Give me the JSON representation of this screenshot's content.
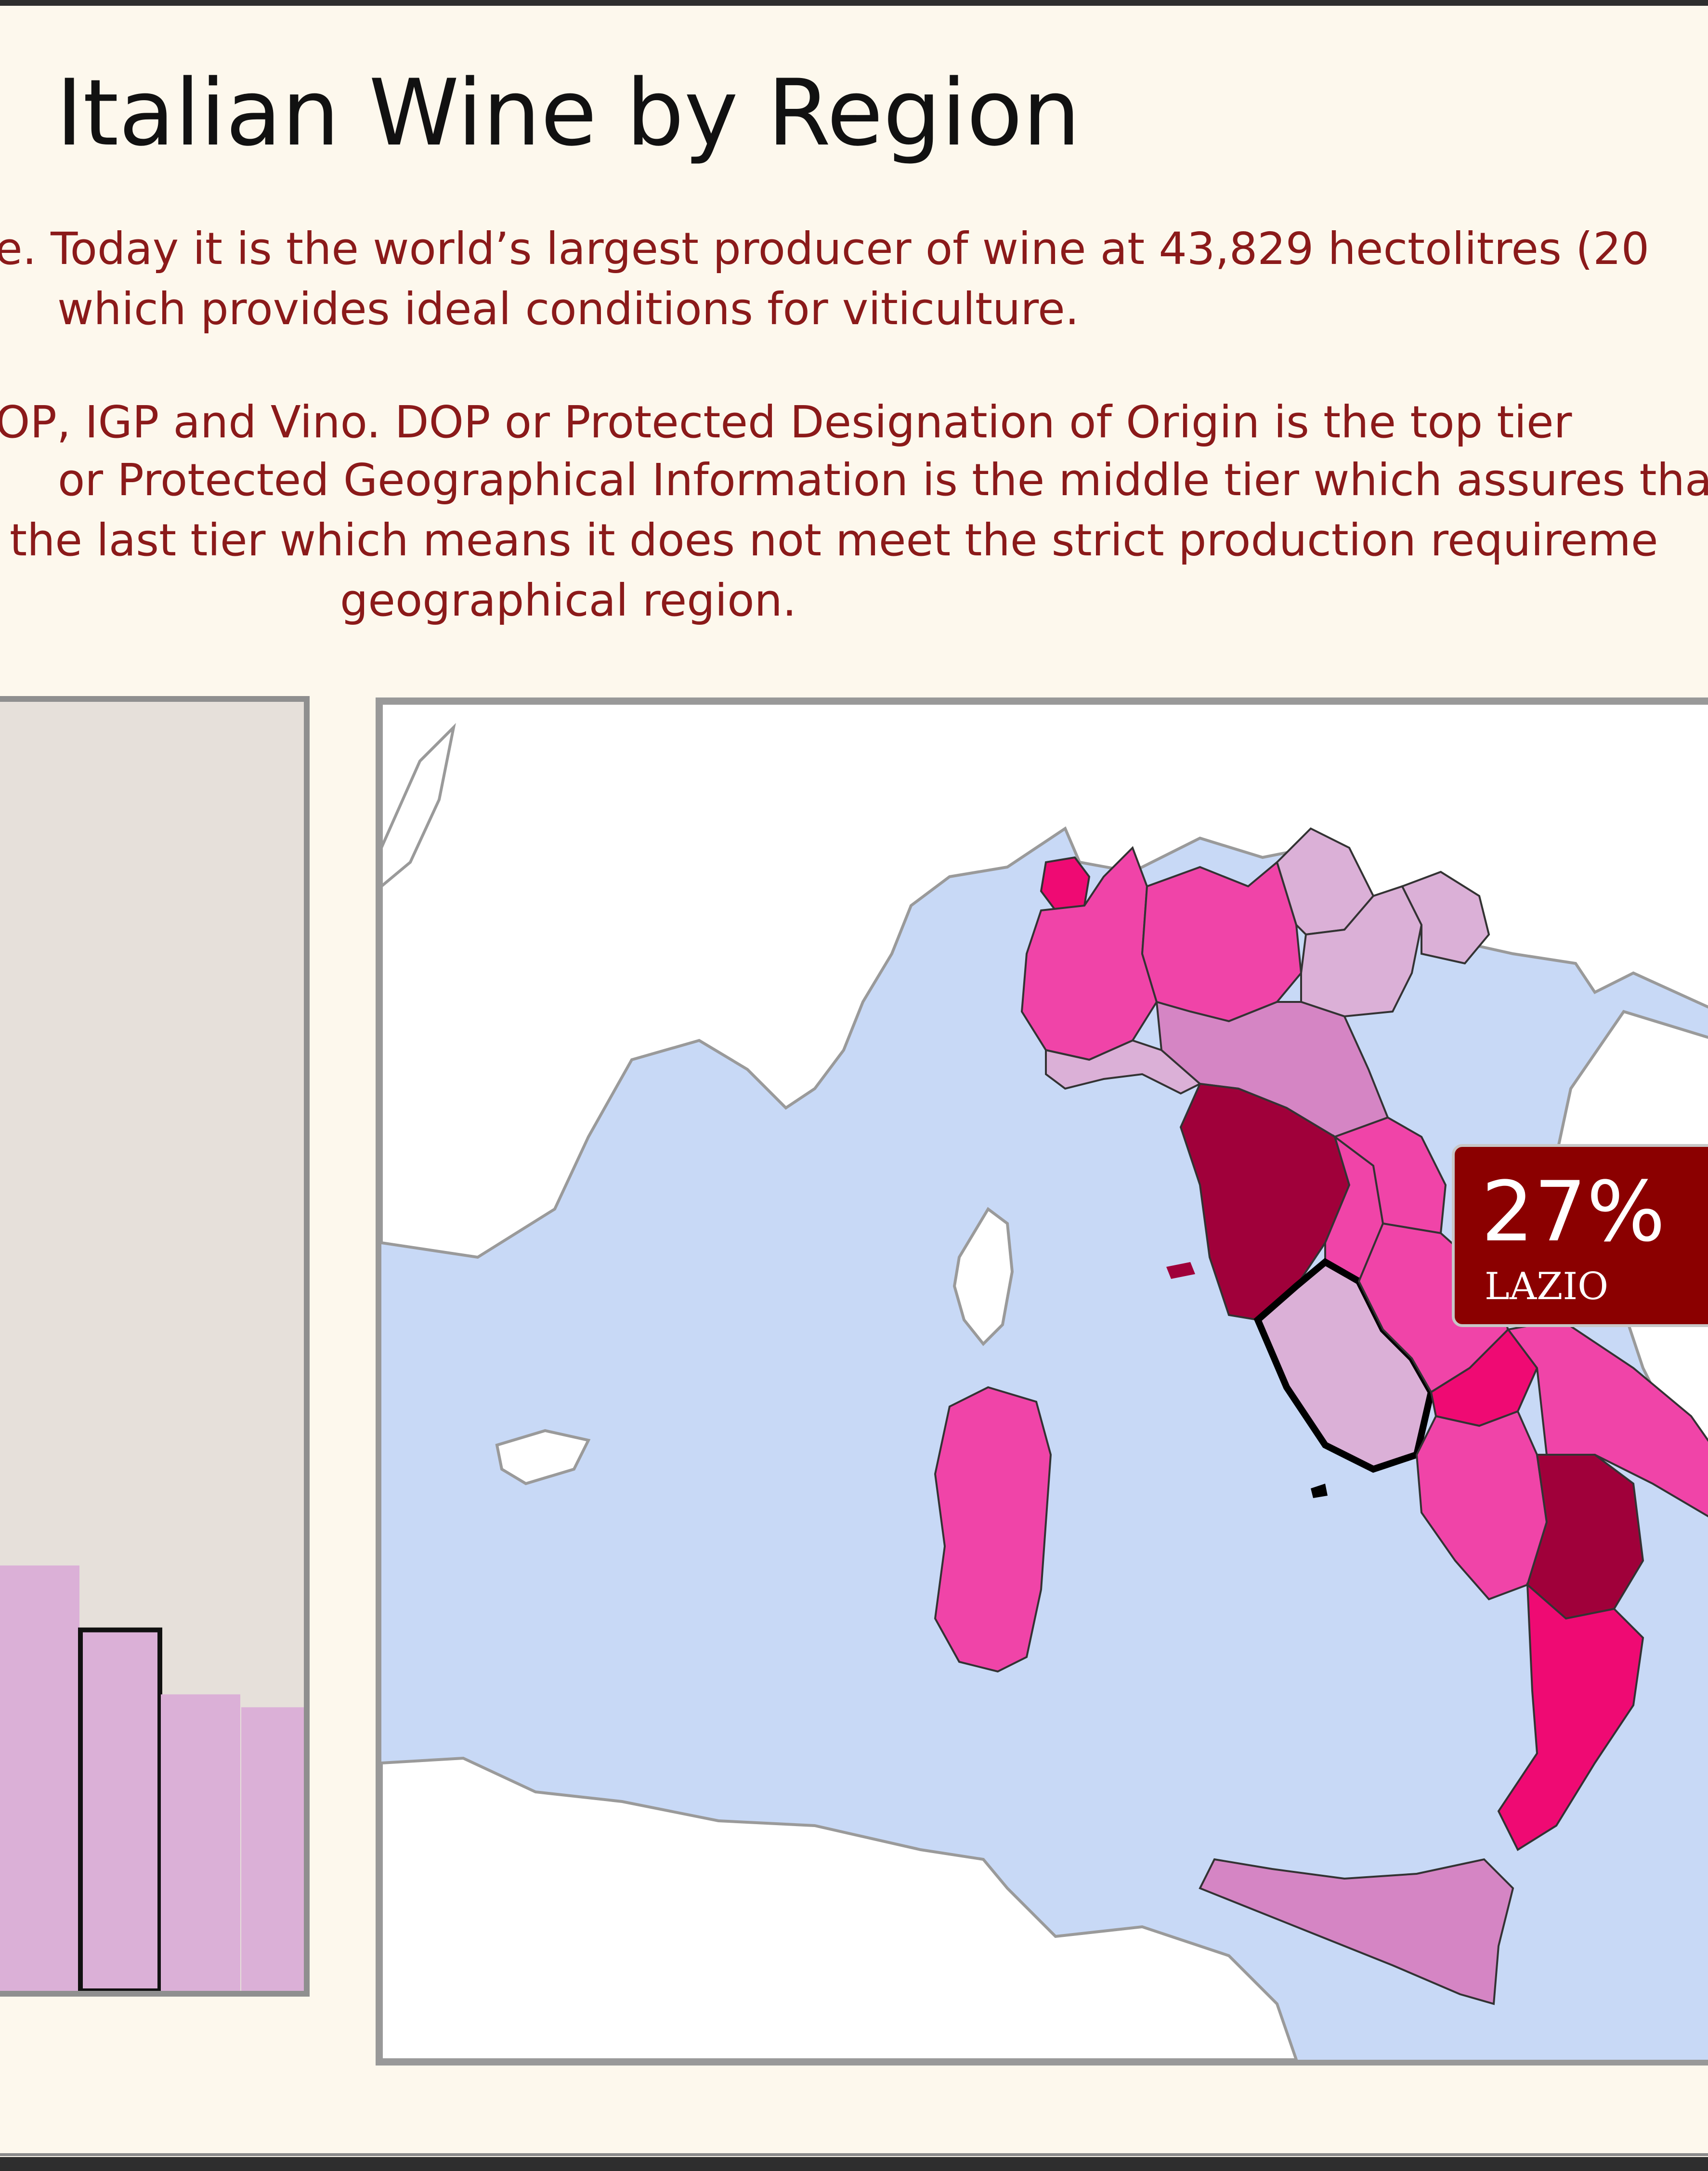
{
  "page": {
    "title": "Italian Wine by Region",
    "intro_p1_line1": "e. Today it is the world’s largest producer of wine at 43,829 hectolitres (20",
    "intro_p1_line2": "which provides ideal conditions for viticulture.",
    "intro_p2_line1": "OP, IGP and Vino. DOP or Protected Designation of Origin is the top tier",
    "intro_p2_line2": "or Protected Geographical Information is the middle tier which assures tha",
    "intro_p2_line3": "the last tier which means it does not meet the strict production requireme",
    "intro_p2_line4": "geographical region."
  },
  "colors": {
    "background": "#fdf8ed",
    "intro_text": "#8b1a1a",
    "chart_panel": "#e6e0da",
    "bar_fill": "#dbb0d7",
    "sea": "#c8d9f6",
    "land_other": "#ffffff",
    "tooltip_bg": "#8b0000",
    "region_scale": [
      "#dbb0d7",
      "#d585c4",
      "#f044a8",
      "#ef0a73",
      "#a0003a"
    ]
  },
  "chart_data": {
    "type": "bar",
    "title": "",
    "xlabel": "",
    "ylabel": "",
    "values": [
      33,
      28,
      23,
      22
    ],
    "highlighted_index": 1
  },
  "map": {
    "tooltip": {
      "value": "27%",
      "label": "LAZIO"
    },
    "highlighted_region": "LAZIO",
    "regions": [
      {
        "name": "valle-d-aosta",
        "color_level": 3
      },
      {
        "name": "piemonte",
        "color_level": 2
      },
      {
        "name": "lombardia",
        "color_level": 2
      },
      {
        "name": "trentino-alto-adige",
        "color_level": 0
      },
      {
        "name": "veneto",
        "color_level": 0
      },
      {
        "name": "friuli-venezia-giulia",
        "color_level": 0
      },
      {
        "name": "liguria",
        "color_level": 0
      },
      {
        "name": "emilia-romagna",
        "color_level": 1
      },
      {
        "name": "toscana",
        "color_level": 4
      },
      {
        "name": "umbria",
        "color_level": 2
      },
      {
        "name": "lazio",
        "color_level": 0
      },
      {
        "name": "abruzzo",
        "color_level": 2
      },
      {
        "name": "molise",
        "color_level": 3
      },
      {
        "name": "campania",
        "color_level": 2
      },
      {
        "name": "puglia",
        "color_level": 2
      },
      {
        "name": "basilicata",
        "color_level": 4
      },
      {
        "name": "calabria",
        "color_level": 3
      },
      {
        "name": "sicilia",
        "color_level": 1
      },
      {
        "name": "sardegna",
        "color_level": 2
      }
    ]
  }
}
